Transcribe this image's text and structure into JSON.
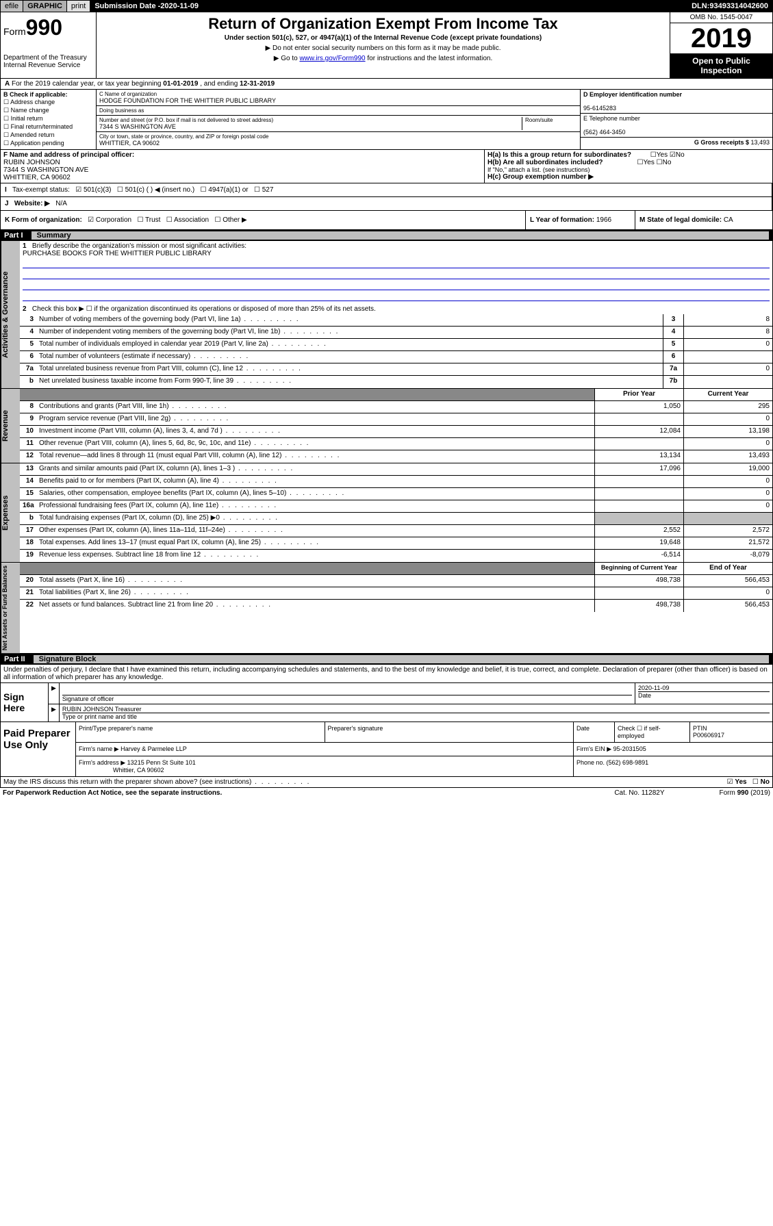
{
  "top_bar": {
    "efile": "efile",
    "graphic": "GRAPHIC",
    "print": "print",
    "submission_label": "Submission Date - ",
    "submission_date": "2020-11-09",
    "dln_label": "DLN: ",
    "dln": "93493314042600"
  },
  "header": {
    "form_prefix": "Form",
    "form_number": "990",
    "title": "Return of Organization Exempt From Income Tax",
    "subtitle": "Under section 501(c), 527, or 4947(a)(1) of the Internal Revenue Code (except private foundations)",
    "note1": "▶ Do not enter social security numbers on this form as it may be made public.",
    "note2_pre": "▶ Go to ",
    "note2_link": "www.irs.gov/Form990",
    "note2_post": " for instructions and the latest information.",
    "dept": "Department of the Treasury\nInternal Revenue Service",
    "omb": "OMB No. 1545-0047",
    "year": "2019",
    "open_public": "Open to Public Inspection"
  },
  "line_a": {
    "text": "For the 2019 calendar year, or tax year beginning ",
    "begin": "01-01-2019",
    "mid": " , and ending ",
    "end": "12-31-2019"
  },
  "box_b": {
    "label": "B Check if applicable:",
    "opts": [
      "Address change",
      "Name change",
      "Initial return",
      "Final return/terminated",
      "Amended return",
      "Application pending"
    ]
  },
  "box_c": {
    "name_label": "C Name of organization",
    "name": "HODGE FOUNDATION FOR THE WHITTIER PUBLIC LIBRARY",
    "dba_label": "Doing business as",
    "dba": "",
    "addr_label": "Number and street (or P.O. box if mail is not delivered to street address)",
    "addr": "7344 S WASHINGTON AVE",
    "room_label": "Room/suite",
    "city_label": "City or town, state or province, country, and ZIP or foreign postal code",
    "city": "WHITTIER, CA  90602"
  },
  "box_d": {
    "label": "D Employer identification number",
    "ein": "95-6145283",
    "phone_label": "E Telephone number",
    "phone": "(562) 464-3450",
    "receipts_label": "G Gross receipts $ ",
    "receipts": "13,493"
  },
  "box_f": {
    "label": "F Name and address of principal officer:",
    "name": "RUBIN JOHNSON",
    "addr": "7344 S WASHINGTON AVE",
    "city": "WHITTIER, CA  90602"
  },
  "box_h": {
    "ha": "H(a)  Is this a group return for subordinates?",
    "hb": "H(b)  Are all subordinates included?",
    "hb_note": "If \"No,\" attach a list. (see instructions)",
    "hc": "H(c)  Group exemption number ▶",
    "yes": "Yes",
    "no": "No"
  },
  "box_i": {
    "label": "Tax-exempt status:",
    "o1": "501(c)(3)",
    "o2": "501(c) (  ) ◀ (insert no.)",
    "o3": "4947(a)(1) or",
    "o4": "527"
  },
  "box_j": {
    "label": "Website: ▶",
    "val": "N/A"
  },
  "box_k": {
    "label": "K Form of organization:",
    "opts": [
      "Corporation",
      "Trust",
      "Association",
      "Other ▶"
    ]
  },
  "box_l": {
    "label": "L Year of formation: ",
    "val": "1966"
  },
  "box_m": {
    "label": "M State of legal domicile: ",
    "val": "CA"
  },
  "part1": {
    "num": "Part I",
    "title": "Summary"
  },
  "summary": {
    "q1": "Briefly describe the organization's mission or most significant activities:",
    "mission": "PURCHASE BOOKS FOR THE WHITTIER PUBLIC LIBRARY",
    "q2": "Check this box ▶ ☐  if the organization discontinued its operations or disposed of more than 25% of its net assets.",
    "rows_gov": [
      {
        "n": "3",
        "d": "Number of voting members of the governing body (Part VI, line 1a)",
        "box": "3",
        "v": "8"
      },
      {
        "n": "4",
        "d": "Number of independent voting members of the governing body (Part VI, line 1b)",
        "box": "4",
        "v": "8"
      },
      {
        "n": "5",
        "d": "Total number of individuals employed in calendar year 2019 (Part V, line 2a)",
        "box": "5",
        "v": "0"
      },
      {
        "n": "6",
        "d": "Total number of volunteers (estimate if necessary)",
        "box": "6",
        "v": ""
      },
      {
        "n": "7a",
        "d": "Total unrelated business revenue from Part VIII, column (C), line 12",
        "box": "7a",
        "v": "0"
      },
      {
        "n": "b",
        "d": "Net unrelated business taxable income from Form 990-T, line 39",
        "box": "7b",
        "v": ""
      }
    ],
    "prior_year": "Prior Year",
    "current_year": "Current Year",
    "rows_rev": [
      {
        "n": "8",
        "d": "Contributions and grants (Part VIII, line 1h)",
        "py": "1,050",
        "cy": "295"
      },
      {
        "n": "9",
        "d": "Program service revenue (Part VIII, line 2g)",
        "py": "",
        "cy": "0"
      },
      {
        "n": "10",
        "d": "Investment income (Part VIII, column (A), lines 3, 4, and 7d )",
        "py": "12,084",
        "cy": "13,198"
      },
      {
        "n": "11",
        "d": "Other revenue (Part VIII, column (A), lines 5, 6d, 8c, 9c, 10c, and 11e)",
        "py": "",
        "cy": "0"
      },
      {
        "n": "12",
        "d": "Total revenue—add lines 8 through 11 (must equal Part VIII, column (A), line 12)",
        "py": "13,134",
        "cy": "13,493"
      }
    ],
    "rows_exp": [
      {
        "n": "13",
        "d": "Grants and similar amounts paid (Part IX, column (A), lines 1–3 )",
        "py": "17,096",
        "cy": "19,000"
      },
      {
        "n": "14",
        "d": "Benefits paid to or for members (Part IX, column (A), line 4)",
        "py": "",
        "cy": "0"
      },
      {
        "n": "15",
        "d": "Salaries, other compensation, employee benefits (Part IX, column (A), lines 5–10)",
        "py": "",
        "cy": "0"
      },
      {
        "n": "16a",
        "d": "Professional fundraising fees (Part IX, column (A), line 11e)",
        "py": "",
        "cy": "0"
      },
      {
        "n": "b",
        "d": "Total fundraising expenses (Part IX, column (D), line 25) ▶0",
        "py": "gray",
        "cy": "gray"
      },
      {
        "n": "17",
        "d": "Other expenses (Part IX, column (A), lines 11a–11d, 11f–24e)",
        "py": "2,552",
        "cy": "2,572"
      },
      {
        "n": "18",
        "d": "Total expenses. Add lines 13–17 (must equal Part IX, column (A), line 25)",
        "py": "19,648",
        "cy": "21,572"
      },
      {
        "n": "19",
        "d": "Revenue less expenses. Subtract line 18 from line 12",
        "py": "-6,514",
        "cy": "-8,079"
      }
    ],
    "beg_year": "Beginning of Current Year",
    "end_year": "End of Year",
    "rows_net": [
      {
        "n": "20",
        "d": "Total assets (Part X, line 16)",
        "py": "498,738",
        "cy": "566,453"
      },
      {
        "n": "21",
        "d": "Total liabilities (Part X, line 26)",
        "py": "",
        "cy": "0"
      },
      {
        "n": "22",
        "d": "Net assets or fund balances. Subtract line 21 from line 20",
        "py": "498,738",
        "cy": "566,453"
      }
    ],
    "side_gov": "Activities & Governance",
    "side_rev": "Revenue",
    "side_exp": "Expenses",
    "side_net": "Net Assets or Fund Balances"
  },
  "part2": {
    "num": "Part II",
    "title": "Signature Block"
  },
  "perjury": "Under penalties of perjury, I declare that I have examined this return, including accompanying schedules and statements, and to the best of my knowledge and belief, it is true, correct, and complete. Declaration of preparer (other than officer) is based on all information of which preparer has any knowledge.",
  "sign": {
    "label": "Sign Here",
    "sig_label": "Signature of officer",
    "date": "2020-11-09",
    "date_label": "Date",
    "name": "RUBIN JOHNSON Treasurer",
    "name_label": "Type or print name and title"
  },
  "paid": {
    "label": "Paid Preparer Use Only",
    "h1": "Print/Type preparer's name",
    "h2": "Preparer's signature",
    "h3": "Date",
    "h4_pre": "Check ☐ if self-employed",
    "ptin_label": "PTIN",
    "ptin": "P00606917",
    "firm_label": "Firm's name    ▶",
    "firm": "Harvey & Parmelee LLP",
    "ein_label": "Firm's EIN ▶",
    "ein": "95-2031505",
    "addr_label": "Firm's address ▶",
    "addr": "13215 Penn St Suite 101",
    "city": "Whittier, CA  90602",
    "phone_label": "Phone no. ",
    "phone": "(562) 698-9891"
  },
  "discuss": {
    "q": "May the IRS discuss this return with the preparer shown above? (see instructions)",
    "yes": "Yes",
    "no": "No"
  },
  "footer": {
    "left": "For Paperwork Reduction Act Notice, see the separate instructions.",
    "mid": "Cat. No. 11282Y",
    "right": "Form 990 (2019)"
  }
}
